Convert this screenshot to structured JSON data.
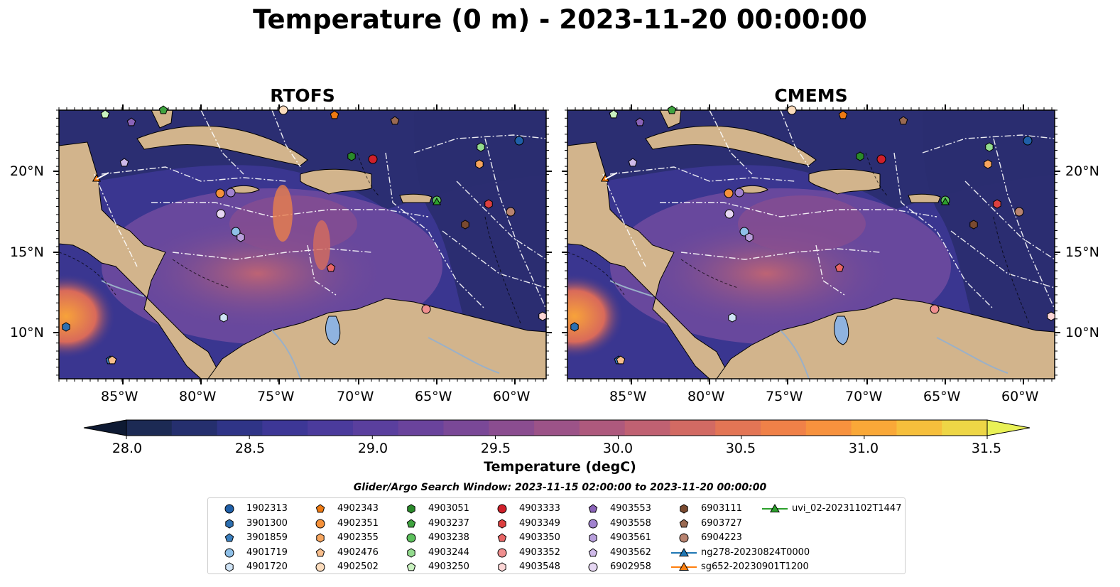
{
  "title": "Temperature (0 m) - 2023-11-20 00:00:00",
  "panels": [
    {
      "title": "RTOFS"
    },
    {
      "title": "CMEMS"
    }
  ],
  "axes": {
    "lat_labels": [
      "20°N",
      "15°N",
      "10°N"
    ],
    "lon_labels": [
      "85°W",
      "80°W",
      "75°W",
      "70°W",
      "65°W",
      "60°W"
    ]
  },
  "colorbar": {
    "label": "Temperature (degC)",
    "ticks": [
      "28.0",
      "28.5",
      "29.0",
      "29.5",
      "30.0",
      "30.5",
      "31.0",
      "31.5"
    ],
    "min": 28.0,
    "max": 31.5,
    "extend": "both",
    "colors": [
      "#1c2a54",
      "#252f6e",
      "#2f3487",
      "#3d3796",
      "#4b3b9c",
      "#5a3f9e",
      "#6a439c",
      "#7a4897",
      "#8b4d90",
      "#9c5388",
      "#ae597d",
      "#c06172",
      "#d26a63",
      "#e37555",
      "#f08148",
      "#f7923e",
      "#f9a838",
      "#f6bf3c",
      "#eed646"
    ],
    "ext_low": "#0e1a33",
    "ext_high": "#e9f156"
  },
  "search_window": "Glider/Argo Search Window: 2023-11-15 02:00:00 to 2023-11-20 00:00:00",
  "legend": [
    {
      "label": "1902313",
      "marker": "circle",
      "color": "#1f5fa8"
    },
    {
      "label": "3901300",
      "marker": "hexagon",
      "color": "#2d6fb0"
    },
    {
      "label": "3901859",
      "marker": "pentagon",
      "color": "#3b7fbe"
    },
    {
      "label": "4901719",
      "marker": "circle",
      "color": "#8fc0e8"
    },
    {
      "label": "4901720",
      "marker": "hexagon",
      "color": "#cfe3f5"
    },
    {
      "label": "4902343",
      "marker": "pentagon",
      "color": "#ee7a12"
    },
    {
      "label": "4902351",
      "marker": "circle",
      "color": "#f5913a"
    },
    {
      "label": "4902355",
      "marker": "hexagon",
      "color": "#f7a55e"
    },
    {
      "label": "4902476",
      "marker": "pentagon",
      "color": "#f8be8c"
    },
    {
      "label": "4902502",
      "marker": "circle",
      "color": "#fbdcbd"
    },
    {
      "label": "4903051",
      "marker": "hexagon",
      "color": "#2a8a2a"
    },
    {
      "label": "4903237",
      "marker": "pentagon",
      "color": "#3fa33f"
    },
    {
      "label": "4903238",
      "marker": "circle",
      "color": "#5cc05c"
    },
    {
      "label": "4903244",
      "marker": "hexagon",
      "color": "#93db8e"
    },
    {
      "label": "4903250",
      "marker": "pentagon",
      "color": "#c9f2c0"
    },
    {
      "label": "4903333",
      "marker": "circle",
      "color": "#d0202a"
    },
    {
      "label": "4903349",
      "marker": "hexagon",
      "color": "#dd4040"
    },
    {
      "label": "4903350",
      "marker": "pentagon",
      "color": "#e86565"
    },
    {
      "label": "4903352",
      "marker": "circle",
      "color": "#f08f8f"
    },
    {
      "label": "4903548",
      "marker": "hexagon",
      "color": "#fbd5d5"
    },
    {
      "label": "4903553",
      "marker": "pentagon",
      "color": "#8a63b8"
    },
    {
      "label": "4903558",
      "marker": "circle",
      "color": "#a182cf"
    },
    {
      "label": "4903561",
      "marker": "hexagon",
      "color": "#b89fdc"
    },
    {
      "label": "4903562",
      "marker": "pentagon",
      "color": "#cfbae9"
    },
    {
      "label": "6902958",
      "marker": "circle",
      "color": "#e6d7f3"
    },
    {
      "label": "6903111",
      "marker": "hexagon",
      "color": "#7a4a30"
    },
    {
      "label": "6903727",
      "marker": "pentagon",
      "color": "#9a6a52"
    },
    {
      "label": "6904223",
      "marker": "circle",
      "color": "#b88370"
    },
    {
      "label": "ng278-20230824T0000",
      "marker": "triangle-line",
      "color": "#1f77b4"
    },
    {
      "label": "sg652-20230901T1200",
      "marker": "triangle-line",
      "color": "#ff7f0e"
    },
    {
      "label": "uvi_02-20231102T1447",
      "marker": "triangle-line",
      "color": "#2ca02c"
    }
  ],
  "colors": {
    "land": "#d2b48c",
    "sea_deep": "#0e1a33",
    "contour": "#ffffff"
  }
}
